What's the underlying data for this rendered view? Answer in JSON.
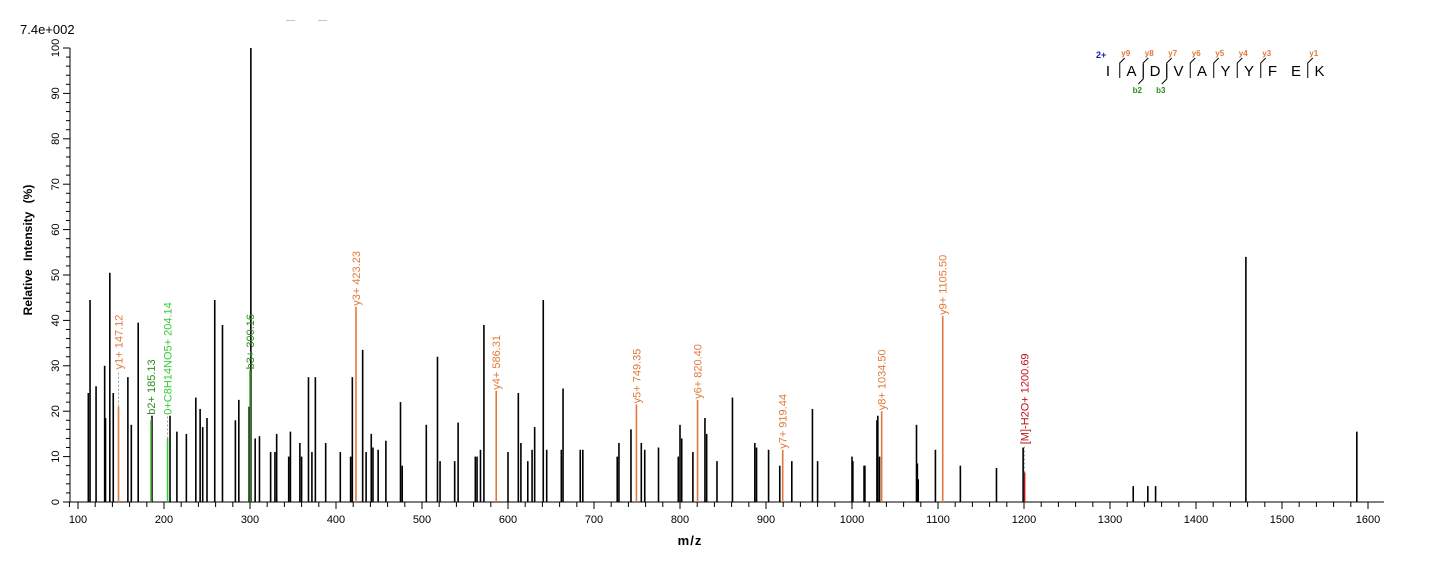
{
  "header": {
    "scale_label": "7.4e+002"
  },
  "axes": {
    "xlabel": "m/z",
    "ylabel": "Relative Intensity (%)"
  },
  "colors": {
    "unassigned": "#000000",
    "y_ion": "#e07a3c",
    "b_ion": "#2e8b1e",
    "internal_ion": "#33cc33",
    "precursor": "#c0101a",
    "charge": "#1a1aa8"
  },
  "sequence": {
    "charge": "2+",
    "residues": [
      "I",
      "A",
      "D",
      "V",
      "A",
      "Y",
      "Y",
      "F",
      "E",
      "K"
    ],
    "y_ions": [
      {
        "label": "y9",
        "after": 0
      },
      {
        "label": "y8",
        "after": 1
      },
      {
        "label": "y7",
        "after": 2
      },
      {
        "label": "y6",
        "after": 3
      },
      {
        "label": "y5",
        "after": 4
      },
      {
        "label": "y4",
        "after": 5
      },
      {
        "label": "y3",
        "after": 6
      },
      {
        "label": "y1",
        "after": 8
      }
    ],
    "b_ions": [
      {
        "label": "b2",
        "after": 1
      },
      {
        "label": "b3",
        "after": 2
      }
    ]
  },
  "chart_data": {
    "type": "bar",
    "title": "",
    "scale_label": "7.4e+002",
    "xlabel": "m/z",
    "ylabel": "Relative Intensity (%)",
    "xlim": [
      95,
      1625
    ],
    "ylim": [
      0,
      100
    ],
    "x_ticks": [
      100,
      200,
      300,
      400,
      500,
      600,
      700,
      800,
      900,
      1000,
      1100,
      1200,
      1300,
      1400,
      1500,
      1600
    ],
    "y_ticks": [
      0,
      10,
      20,
      30,
      40,
      50,
      60,
      70,
      80,
      90,
      100
    ],
    "grid": false,
    "legend": null,
    "annotated_peaks": [
      {
        "label": "y1+ 147.12",
        "mz": 147.12,
        "intensity": 21,
        "label_top": 29,
        "ion": "y"
      },
      {
        "label": "b2+ 185.13",
        "mz": 185.13,
        "intensity": 18,
        "label_top": 19,
        "ion": "b"
      },
      {
        "label": "0+C8H14NO5+ 204.14",
        "mz": 204.14,
        "intensity": 14,
        "label_top": 19,
        "ion": "internal"
      },
      {
        "label": "b3+ 300.16",
        "mz": 300.16,
        "intensity": 29,
        "label_top": 29,
        "ion": "b"
      },
      {
        "label": "y3+ 423.23",
        "mz": 423.23,
        "intensity": 43,
        "label_top": 43,
        "ion": "y"
      },
      {
        "label": "y4+ 586.31",
        "mz": 586.31,
        "intensity": 24.5,
        "label_top": 24.5,
        "ion": "y"
      },
      {
        "label": "y5+ 749.35",
        "mz": 749.35,
        "intensity": 21.5,
        "label_top": 21.5,
        "ion": "y"
      },
      {
        "label": "y6+ 820.40",
        "mz": 820.4,
        "intensity": 22.5,
        "label_top": 22.5,
        "ion": "y"
      },
      {
        "label": "y7+ 919.44",
        "mz": 919.44,
        "intensity": 11.5,
        "label_top": 11.5,
        "ion": "y"
      },
      {
        "label": "y8+ 1034.50",
        "mz": 1034.5,
        "intensity": 20,
        "label_top": 20,
        "ion": "y"
      },
      {
        "label": "y9+ 1105.50",
        "mz": 1105.5,
        "intensity": 41,
        "label_top": 41,
        "ion": "y"
      },
      {
        "label": "[M]-H2O+ 1200.69",
        "mz": 1200.69,
        "intensity": 6.5,
        "label_top": 12.5,
        "ion": "precursor"
      }
    ],
    "peaks": [
      {
        "mz": 112,
        "intensity": 24
      },
      {
        "mz": 114,
        "intensity": 44.5
      },
      {
        "mz": 121,
        "intensity": 25.5
      },
      {
        "mz": 131,
        "intensity": 30
      },
      {
        "mz": 132,
        "intensity": 18.5
      },
      {
        "mz": 137,
        "intensity": 50.5
      },
      {
        "mz": 141,
        "intensity": 24
      },
      {
        "mz": 158,
        "intensity": 27.5
      },
      {
        "mz": 162,
        "intensity": 17
      },
      {
        "mz": 170,
        "intensity": 39.5
      },
      {
        "mz": 186,
        "intensity": 19
      },
      {
        "mz": 207,
        "intensity": 19
      },
      {
        "mz": 215,
        "intensity": 15.5
      },
      {
        "mz": 226,
        "intensity": 15
      },
      {
        "mz": 237,
        "intensity": 23
      },
      {
        "mz": 242,
        "intensity": 20.5
      },
      {
        "mz": 245,
        "intensity": 16.5
      },
      {
        "mz": 250,
        "intensity": 18.5
      },
      {
        "mz": 259,
        "intensity": 44.5
      },
      {
        "mz": 268,
        "intensity": 39
      },
      {
        "mz": 283,
        "intensity": 18
      },
      {
        "mz": 287,
        "intensity": 22.5
      },
      {
        "mz": 299,
        "intensity": 21
      },
      {
        "mz": 301,
        "intensity": 100
      },
      {
        "mz": 306,
        "intensity": 14
      },
      {
        "mz": 311,
        "intensity": 14.5
      },
      {
        "mz": 324,
        "intensity": 11
      },
      {
        "mz": 329,
        "intensity": 11
      },
      {
        "mz": 331,
        "intensity": 15
      },
      {
        "mz": 345,
        "intensity": 10
      },
      {
        "mz": 347,
        "intensity": 15.5
      },
      {
        "mz": 358,
        "intensity": 13
      },
      {
        "mz": 360,
        "intensity": 10
      },
      {
        "mz": 368,
        "intensity": 27.5
      },
      {
        "mz": 372,
        "intensity": 11
      },
      {
        "mz": 376,
        "intensity": 27.5
      },
      {
        "mz": 388,
        "intensity": 13
      },
      {
        "mz": 405,
        "intensity": 11
      },
      {
        "mz": 417,
        "intensity": 10
      },
      {
        "mz": 419,
        "intensity": 27.5
      },
      {
        "mz": 431,
        "intensity": 33.5
      },
      {
        "mz": 435,
        "intensity": 11
      },
      {
        "mz": 441,
        "intensity": 15
      },
      {
        "mz": 443,
        "intensity": 12
      },
      {
        "mz": 449,
        "intensity": 11.5
      },
      {
        "mz": 458,
        "intensity": 13.5
      },
      {
        "mz": 475,
        "intensity": 22
      },
      {
        "mz": 477,
        "intensity": 8
      },
      {
        "mz": 505,
        "intensity": 17
      },
      {
        "mz": 518,
        "intensity": 32
      },
      {
        "mz": 521,
        "intensity": 9
      },
      {
        "mz": 538,
        "intensity": 9
      },
      {
        "mz": 542,
        "intensity": 17.5
      },
      {
        "mz": 562,
        "intensity": 10
      },
      {
        "mz": 564,
        "intensity": 10
      },
      {
        "mz": 568,
        "intensity": 11.5
      },
      {
        "mz": 572,
        "intensity": 39
      },
      {
        "mz": 600,
        "intensity": 11
      },
      {
        "mz": 612,
        "intensity": 24
      },
      {
        "mz": 615,
        "intensity": 13
      },
      {
        "mz": 623,
        "intensity": 9
      },
      {
        "mz": 628,
        "intensity": 11.5
      },
      {
        "mz": 631,
        "intensity": 16.5
      },
      {
        "mz": 641,
        "intensity": 44.5
      },
      {
        "mz": 645,
        "intensity": 11.5
      },
      {
        "mz": 662,
        "intensity": 11.5
      },
      {
        "mz": 664,
        "intensity": 25
      },
      {
        "mz": 684,
        "intensity": 11.5
      },
      {
        "mz": 687,
        "intensity": 11.5
      },
      {
        "mz": 727,
        "intensity": 10
      },
      {
        "mz": 729,
        "intensity": 13
      },
      {
        "mz": 743,
        "intensity": 16
      },
      {
        "mz": 755,
        "intensity": 13
      },
      {
        "mz": 759,
        "intensity": 11.5
      },
      {
        "mz": 775,
        "intensity": 12
      },
      {
        "mz": 798,
        "intensity": 10
      },
      {
        "mz": 800,
        "intensity": 17
      },
      {
        "mz": 802,
        "intensity": 14
      },
      {
        "mz": 815,
        "intensity": 11
      },
      {
        "mz": 829,
        "intensity": 18.5
      },
      {
        "mz": 831,
        "intensity": 15
      },
      {
        "mz": 843,
        "intensity": 9
      },
      {
        "mz": 861,
        "intensity": 23
      },
      {
        "mz": 887,
        "intensity": 13
      },
      {
        "mz": 889,
        "intensity": 12
      },
      {
        "mz": 903,
        "intensity": 11.5
      },
      {
        "mz": 916,
        "intensity": 8
      },
      {
        "mz": 930,
        "intensity": 9
      },
      {
        "mz": 954,
        "intensity": 20.5
      },
      {
        "mz": 960,
        "intensity": 9
      },
      {
        "mz": 1000,
        "intensity": 10
      },
      {
        "mz": 1001,
        "intensity": 9
      },
      {
        "mz": 1014,
        "intensity": 8
      },
      {
        "mz": 1015,
        "intensity": 8
      },
      {
        "mz": 1029,
        "intensity": 18
      },
      {
        "mz": 1030,
        "intensity": 19
      },
      {
        "mz": 1032,
        "intensity": 10
      },
      {
        "mz": 1075,
        "intensity": 17
      },
      {
        "mz": 1076,
        "intensity": 8.5
      },
      {
        "mz": 1077,
        "intensity": 5
      },
      {
        "mz": 1097,
        "intensity": 11.5
      },
      {
        "mz": 1126,
        "intensity": 8
      },
      {
        "mz": 1168,
        "intensity": 7.5
      },
      {
        "mz": 1199,
        "intensity": 12
      },
      {
        "mz": 1327,
        "intensity": 3.5
      },
      {
        "mz": 1344,
        "intensity": 3.5
      },
      {
        "mz": 1353,
        "intensity": 3.5
      },
      {
        "mz": 1458,
        "intensity": 54
      },
      {
        "mz": 1587,
        "intensity": 15.5
      }
    ]
  }
}
